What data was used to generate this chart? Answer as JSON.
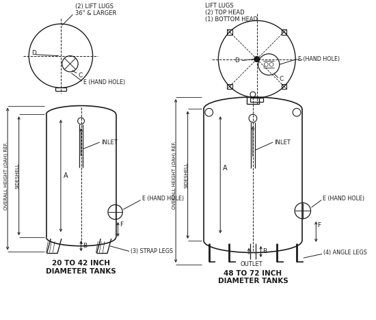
{
  "bg_color": "#ffffff",
  "lc": "#1a1a1a",
  "label1": "20 TO 42 INCH\nDIAMETER TANKS",
  "label2": "48 TO 72 INCH\nDIAMETER TANKS",
  "lift_lugs_small_1": "(2) LIFT LUGS",
  "lift_lugs_small_2": "36\" & LARGER",
  "lift_lugs_large_1": "LIFT LUGS",
  "lift_lugs_large_2": "(2) TOP HEAD",
  "lift_lugs_large_3": "(1) BOTTOM HEAD",
  "hand_hole": "E (HAND HOLE)",
  "inlet": "INLET",
  "outlet": "OUTLET",
  "oah": "OVERALL HEIGHT (OAH) REF.",
  "sideshell": "SIDESHELL",
  "strap_legs": "(3) STRAP LEGS",
  "angle_legs": "(4) ANGLE LEGS"
}
